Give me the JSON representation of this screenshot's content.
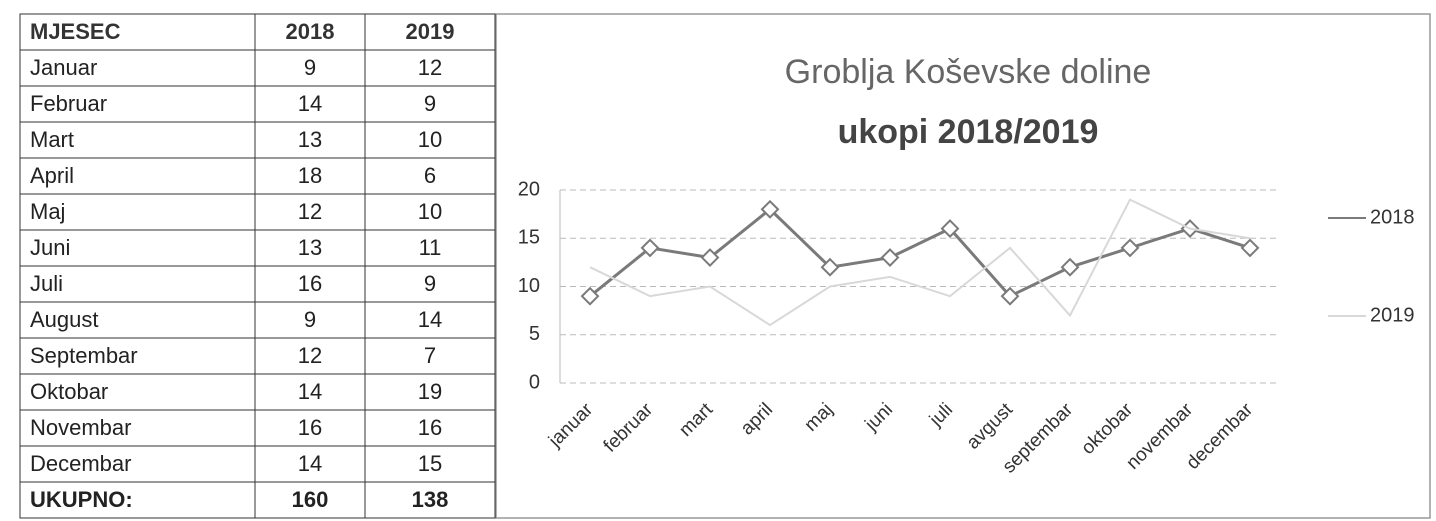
{
  "table": {
    "header": [
      "MJESEC",
      "2018",
      "2019"
    ],
    "rows": [
      [
        "Januar",
        9,
        12
      ],
      [
        "Februar",
        14,
        9
      ],
      [
        "Mart",
        13,
        10
      ],
      [
        "April",
        18,
        6
      ],
      [
        "Maj",
        12,
        10
      ],
      [
        "Juni",
        13,
        11
      ],
      [
        "Juli",
        16,
        9
      ],
      [
        "August",
        9,
        14
      ],
      [
        "Septembar",
        12,
        7
      ],
      [
        "Oktobar",
        14,
        19
      ],
      [
        "Novembar",
        16,
        16
      ],
      [
        "Decembar",
        14,
        15
      ]
    ],
    "total": [
      "UKUPNO:",
      160,
      138
    ]
  },
  "chart_data": {
    "type": "line",
    "title": "Groblja Koševske doline",
    "subtitle": "ukopi 2018/2019",
    "categories": [
      "januar",
      "februar",
      "mart",
      "april",
      "maj",
      "juni",
      "juli",
      "avgust",
      "septembar",
      "oktobar",
      "novembar",
      "decembar"
    ],
    "series": [
      {
        "name": "2018",
        "color": "#7a7a7a",
        "values": [
          9,
          14,
          13,
          18,
          12,
          13,
          16,
          9,
          12,
          14,
          16,
          14
        ]
      },
      {
        "name": "2019",
        "color": "#d8d8d8",
        "values": [
          12,
          9,
          10,
          6,
          10,
          11,
          9,
          14,
          7,
          19,
          16,
          15
        ]
      }
    ],
    "ylim": [
      0,
      20
    ],
    "yticks": [
      0,
      5,
      10,
      15,
      20
    ],
    "grid": true,
    "legend": "right"
  }
}
